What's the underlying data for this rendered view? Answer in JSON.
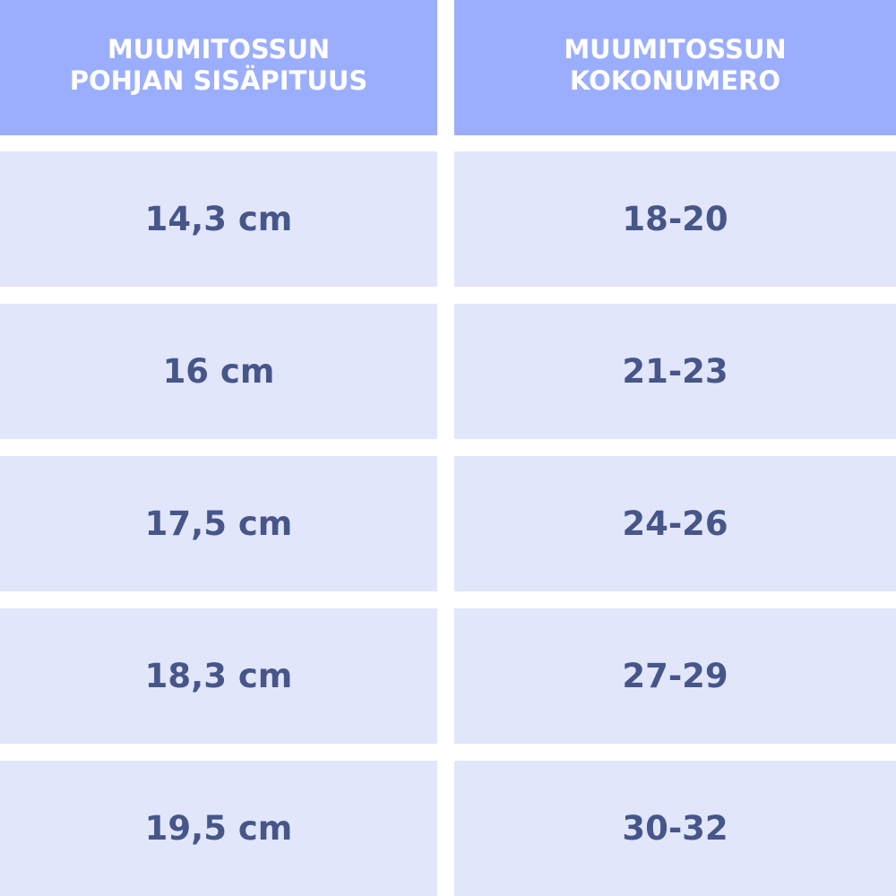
{
  "table": {
    "headers": [
      "MUUMITOSSUN\nPOHJAN SISÄPITUUS",
      "MUUMITOSSUN\nKOKONUMERO"
    ],
    "rows": [
      [
        "14,3 cm",
        "18-20"
      ],
      [
        "16 cm",
        "21-23"
      ],
      [
        "17,5 cm",
        "24-26"
      ],
      [
        "18,3 cm",
        "27-29"
      ],
      [
        "19,5 cm",
        "30-32"
      ]
    ]
  },
  "colors": {
    "header_bg": "#9baefd",
    "row_bg": "#e1e6fb",
    "text": "#475689",
    "header_text": "#ffffff"
  }
}
